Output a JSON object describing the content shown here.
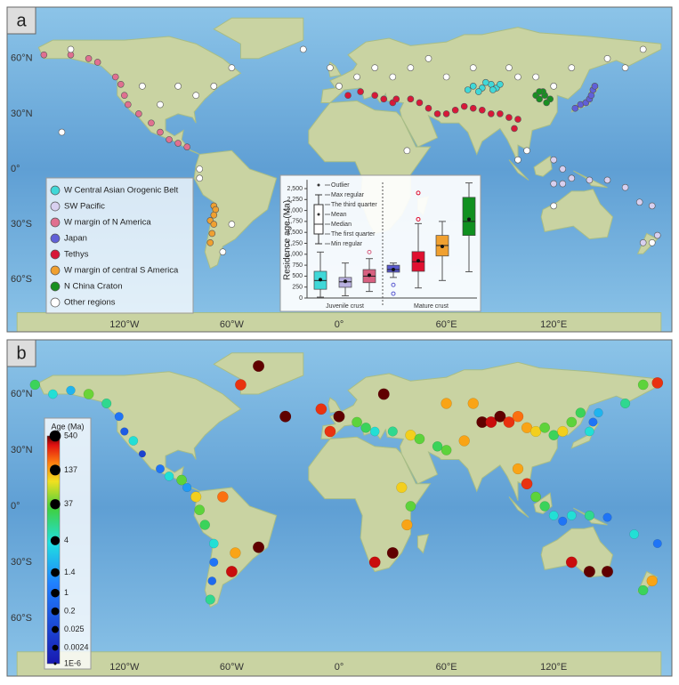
{
  "panel_a": {
    "label": "a",
    "lat_labels": [
      "60°N",
      "30°N",
      "0°",
      "30°S",
      "60°S"
    ],
    "lon_labels": [
      "120°W",
      "60°W",
      "0°",
      "60°E",
      "120°E"
    ],
    "legend": [
      {
        "name": "W Central Asian Orogenic Belt",
        "color": "#40d8d8",
        "points": [
          [
            75,
            45
          ],
          [
            80,
            44
          ],
          [
            85,
            46
          ],
          [
            88,
            44
          ],
          [
            78,
            42
          ],
          [
            82,
            47
          ],
          [
            90,
            46
          ],
          [
            86,
            43
          ],
          [
            72,
            43
          ]
        ]
      },
      {
        "name": "SW Pacific",
        "color": "#d8d0f0",
        "points": [
          [
            120,
            -8
          ],
          [
            125,
            -8
          ],
          [
            130,
            -5
          ],
          [
            140,
            -6
          ],
          [
            150,
            -6
          ],
          [
            160,
            -10
          ],
          [
            168,
            -18
          ],
          [
            175,
            -20
          ],
          [
            178,
            -36
          ],
          [
            170,
            -40
          ],
          [
            125,
            0
          ],
          [
            120,
            5
          ]
        ]
      },
      {
        "name": "W margin of N America",
        "color": "#e07090",
        "points": [
          [
            -165,
            62
          ],
          [
            -150,
            62
          ],
          [
            -140,
            60
          ],
          [
            -135,
            58
          ],
          [
            -125,
            50
          ],
          [
            -122,
            46
          ],
          [
            -120,
            40
          ],
          [
            -118,
            35
          ],
          [
            -112,
            30
          ],
          [
            -105,
            25
          ],
          [
            -100,
            20
          ],
          [
            -95,
            16
          ],
          [
            -90,
            14
          ],
          [
            -85,
            12
          ]
        ]
      },
      {
        "name": "Japan",
        "color": "#6060d8",
        "points": [
          [
            132,
            33
          ],
          [
            135,
            35
          ],
          [
            138,
            36
          ],
          [
            140,
            38
          ],
          [
            141,
            40
          ],
          [
            142,
            43
          ],
          [
            143,
            45
          ]
        ]
      },
      {
        "name": "Tethys",
        "color": "#d81838",
        "points": [
          [
            5,
            40
          ],
          [
            12,
            42
          ],
          [
            20,
            40
          ],
          [
            25,
            38
          ],
          [
            30,
            36
          ],
          [
            32,
            38
          ],
          [
            40,
            38
          ],
          [
            45,
            36
          ],
          [
            50,
            33
          ],
          [
            55,
            30
          ],
          [
            60,
            30
          ],
          [
            65,
            32
          ],
          [
            70,
            34
          ],
          [
            75,
            33
          ],
          [
            80,
            32
          ],
          [
            85,
            30
          ],
          [
            90,
            30
          ],
          [
            95,
            28
          ],
          [
            100,
            27
          ],
          [
            98,
            22
          ]
        ]
      },
      {
        "name": "W margin of central S America",
        "color": "#f0a030",
        "points": [
          [
            -70,
            -20
          ],
          [
            -69,
            -22
          ],
          [
            -70,
            -25
          ],
          [
            -72,
            -28
          ],
          [
            -70,
            -30
          ],
          [
            -71,
            -35
          ],
          [
            -72,
            -40
          ]
        ]
      },
      {
        "name": "N China Craton",
        "color": "#189020",
        "points": [
          [
            110,
            40
          ],
          [
            112,
            38
          ],
          [
            115,
            40
          ],
          [
            118,
            38
          ],
          [
            114,
            42
          ],
          [
            116,
            36
          ],
          [
            112,
            42
          ]
        ]
      },
      {
        "name": "Other regions",
        "color": "#ffffff",
        "points": [
          [
            -60,
            55
          ],
          [
            -70,
            45
          ],
          [
            -80,
            40
          ],
          [
            -100,
            35
          ],
          [
            -78,
            0
          ],
          [
            -78,
            -5
          ],
          [
            -60,
            -30
          ],
          [
            -65,
            -45
          ],
          [
            0,
            45
          ],
          [
            10,
            50
          ],
          [
            20,
            55
          ],
          [
            30,
            50
          ],
          [
            40,
            55
          ],
          [
            60,
            50
          ],
          [
            100,
            50
          ],
          [
            110,
            50
          ],
          [
            120,
            45
          ],
          [
            130,
            55
          ],
          [
            150,
            60
          ],
          [
            170,
            65
          ],
          [
            105,
            10
          ],
          [
            100,
            5
          ],
          [
            -155,
            20
          ],
          [
            -20,
            65
          ],
          [
            160,
            55
          ],
          [
            50,
            60
          ],
          [
            75,
            55
          ],
          [
            95,
            55
          ],
          [
            -110,
            45
          ],
          [
            -90,
            45
          ],
          [
            -150,
            65
          ],
          [
            -5,
            55
          ],
          [
            38,
            10
          ],
          [
            175,
            -40
          ],
          [
            120,
            -20
          ]
        ]
      }
    ]
  },
  "chart_data": {
    "type": "box",
    "ylabel": "Residence age (Ma)",
    "ylim": [
      0,
      2700
    ],
    "yticks": [
      0,
      250,
      500,
      750,
      {
        "value": 1000,
        "label": "1,000"
      },
      {
        "value": 1250,
        "label": "1,250"
      },
      {
        "value": 1500,
        "label": "1,500"
      },
      {
        "value": 1750,
        "label": "1,750"
      },
      {
        "value": 2000,
        "label": "2,000"
      },
      {
        "value": 2250,
        "label": "2,250"
      },
      {
        "value": 2500,
        "label": "2,500"
      }
    ],
    "key_labels": [
      "Outlier",
      "Max regular",
      "The third quarter",
      "Mean",
      "Median",
      "The first quarter",
      "Min regular"
    ],
    "groups": [
      {
        "name": "Juvenile crust",
        "boxes": [
          {
            "color": "#40d8d8",
            "min": 20,
            "q1": 200,
            "median": 400,
            "q3": 610,
            "max": 1050,
            "mean": 420,
            "outliers": []
          },
          {
            "color": "#b8b0e0",
            "min": 50,
            "q1": 245,
            "median": 370,
            "q3": 470,
            "max": 800,
            "mean": 380,
            "outliers": []
          },
          {
            "color": "#d86080",
            "min": 150,
            "q1": 350,
            "median": 500,
            "q3": 650,
            "max": 900,
            "mean": 520,
            "outliers": [
              1050
            ]
          }
        ]
      },
      {
        "name": "Mature crust",
        "boxes": [
          {
            "color": "#5a5ad0",
            "min": 470,
            "q1": 590,
            "median": 650,
            "q3": 750,
            "max": 800,
            "mean": 650,
            "outliers": [
              300,
              100
            ]
          },
          {
            "color": "#e01030",
            "min": 230,
            "q1": 610,
            "median": 830,
            "q3": 1060,
            "max": 1700,
            "mean": 850,
            "outliers": [
              2400,
              1800
            ]
          },
          {
            "color": "#f0a030",
            "min": 400,
            "q1": 960,
            "median": 1200,
            "q3": 1430,
            "max": 1750,
            "mean": 1180,
            "outliers": []
          },
          {
            "color": "#109020",
            "min": 600,
            "q1": 1430,
            "median": 1750,
            "q3": 2300,
            "max": 2630,
            "mean": 1800,
            "outliers": []
          }
        ]
      }
    ]
  },
  "panel_b": {
    "label": "b",
    "lat_labels": [
      "60°N",
      "30°N",
      "0°",
      "30°S",
      "60°S"
    ],
    "lon_labels": [
      "120°W",
      "60°W",
      "0°",
      "60°E",
      "120°E"
    ],
    "colorbar": {
      "title": "Age (Ma)",
      "ticks": [
        540,
        137,
        37,
        4,
        1.4,
        1,
        0.2,
        0.025,
        0.0024,
        {
          "value": 1e-06,
          "label": "1E-6"
        }
      ]
    },
    "points": [
      [
        -170,
        65,
        20
      ],
      [
        -160,
        60,
        4
      ],
      [
        -150,
        62,
        2
      ],
      [
        -140,
        60,
        40
      ],
      [
        -130,
        55,
        10
      ],
      [
        -123,
        48,
        1
      ],
      [
        -120,
        40,
        0.2
      ],
      [
        -115,
        35,
        4
      ],
      [
        -110,
        28,
        0.02
      ],
      [
        -100,
        20,
        1
      ],
      [
        -95,
        16,
        4
      ],
      [
        -88,
        14,
        37
      ],
      [
        -85,
        10,
        1.4
      ],
      [
        -80,
        5,
        100
      ],
      [
        -78,
        -2,
        37
      ],
      [
        -75,
        -10,
        20
      ],
      [
        -70,
        -20,
        4
      ],
      [
        -70,
        -30,
        1
      ],
      [
        -71,
        -40,
        0.5
      ],
      [
        -72,
        -50,
        10
      ],
      [
        -60,
        -35,
        400
      ],
      [
        -45,
        -22,
        540
      ],
      [
        -58,
        -25,
        137
      ],
      [
        -65,
        5,
        200
      ],
      [
        -55,
        65,
        300
      ],
      [
        -45,
        75,
        540
      ],
      [
        -30,
        48,
        540
      ],
      [
        -10,
        52,
        300
      ],
      [
        0,
        48,
        540
      ],
      [
        10,
        45,
        37
      ],
      [
        15,
        42,
        20
      ],
      [
        20,
        40,
        4
      ],
      [
        30,
        40,
        10
      ],
      [
        40,
        38,
        100
      ],
      [
        45,
        36,
        37
      ],
      [
        55,
        32,
        20
      ],
      [
        60,
        30,
        37
      ],
      [
        70,
        35,
        137
      ],
      [
        80,
        45,
        540
      ],
      [
        85,
        45,
        400
      ],
      [
        90,
        48,
        540
      ],
      [
        95,
        45,
        300
      ],
      [
        100,
        48,
        200
      ],
      [
        105,
        42,
        137
      ],
      [
        110,
        40,
        100
      ],
      [
        115,
        42,
        37
      ],
      [
        120,
        38,
        20
      ],
      [
        125,
        40,
        100
      ],
      [
        130,
        45,
        37
      ],
      [
        135,
        50,
        20
      ],
      [
        140,
        40,
        4
      ],
      [
        142,
        45,
        1
      ],
      [
        145,
        50,
        2
      ],
      [
        160,
        55,
        10
      ],
      [
        170,
        65,
        37
      ],
      [
        178,
        66,
        300
      ],
      [
        100,
        20,
        137
      ],
      [
        105,
        12,
        300
      ],
      [
        110,
        5,
        37
      ],
      [
        115,
        0,
        20
      ],
      [
        120,
        -5,
        4
      ],
      [
        125,
        -8,
        1
      ],
      [
        130,
        -5,
        4
      ],
      [
        140,
        -5,
        10
      ],
      [
        150,
        -6,
        1
      ],
      [
        165,
        -15,
        4
      ],
      [
        178,
        -20,
        1
      ],
      [
        150,
        -35,
        540
      ],
      [
        140,
        -35,
        540
      ],
      [
        130,
        -30,
        400
      ],
      [
        175,
        -40,
        137
      ],
      [
        170,
        -45,
        20
      ],
      [
        40,
        0,
        37
      ],
      [
        35,
        10,
        100
      ],
      [
        38,
        -10,
        137
      ],
      [
        30,
        -25,
        540
      ],
      [
        20,
        -30,
        400
      ],
      [
        -5,
        40,
        300
      ],
      [
        25,
        60,
        540
      ],
      [
        60,
        55,
        137
      ],
      [
        75,
        55,
        137
      ]
    ]
  }
}
